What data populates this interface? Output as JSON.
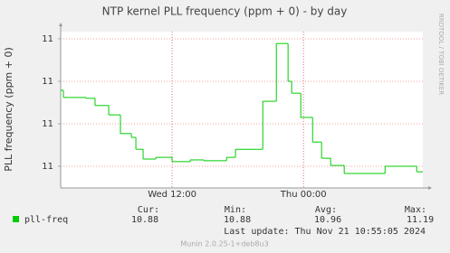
{
  "chart_data": {
    "type": "step-line",
    "title": "NTP kernel PLL frequency (ppm + 0) - by day",
    "y_label": "PLL frequency (ppm + 0)",
    "side_label": "RRDTOOL / TOBI OETIKER",
    "xlim": [
      1.82,
      34.9
    ],
    "xticks": [
      {
        "value": 12,
        "label": "Wed 12:00"
      },
      {
        "value": 24,
        "label": "Thu 00:00"
      }
    ],
    "ylim": [
      10.849,
      11.217
    ],
    "yticks": [
      {
        "value": 10.9,
        "label": "11"
      },
      {
        "value": 11.0,
        "label": "11"
      },
      {
        "value": 11.1,
        "label": "11"
      },
      {
        "value": 11.2,
        "label": "11"
      }
    ],
    "grid": true,
    "series": [
      {
        "name": "pll-freq",
        "color": "#00cc00",
        "x": [
          1.82,
          2.07,
          4.14,
          4.96,
          6.21,
          7.28,
          8.28,
          8.69,
          9.35,
          10.51,
          12.0,
          13.65,
          14.9,
          16.97,
          17.79,
          20.28,
          21.52,
          22.59,
          22.92,
          23.75,
          24.83,
          25.65,
          26.48,
          27.72,
          31.45,
          34.34
        ],
        "values": [
          11.079,
          11.062,
          11.06,
          11.043,
          11.021,
          10.977,
          10.968,
          10.94,
          10.917,
          10.921,
          10.911,
          10.915,
          10.913,
          10.921,
          10.94,
          11.053,
          11.189,
          11.1,
          11.072,
          11.015,
          10.957,
          10.919,
          10.902,
          10.883,
          10.9,
          10.887
        ]
      }
    ],
    "stats": [
      {
        "label": "Cur:",
        "value": 10.88
      },
      {
        "label": "Min:",
        "value": 10.88
      },
      {
        "label": "Avg:",
        "value": 10.96
      },
      {
        "label": "Max:",
        "value": 11.19
      }
    ],
    "last_update": "Last update:  Thu Nov 21 10:55:05 2024",
    "footer": "Munin 2.0.25-1+deb8u3"
  }
}
